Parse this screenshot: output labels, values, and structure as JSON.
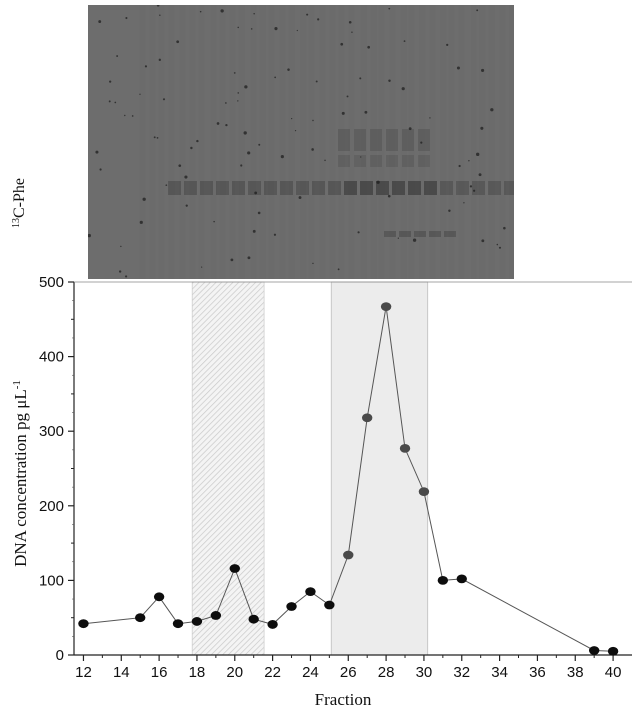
{
  "gel": {
    "label_superscript": "13",
    "label_main": "C-Phe"
  },
  "chart_data": {
    "type": "scatter",
    "xlabel": "Fraction",
    "ylabel_main": "DNA concentration pg μL",
    "ylabel_superscript": "-1",
    "xlim": [
      11.5,
      41
    ],
    "ylim": [
      0,
      500
    ],
    "xticks": [
      12,
      14,
      16,
      18,
      20,
      22,
      24,
      26,
      28,
      30,
      32,
      34,
      36,
      38,
      40
    ],
    "yticks": [
      0,
      100,
      200,
      300,
      400,
      500
    ],
    "grid": false,
    "shaded_regions": [
      {
        "x_start": 17.75,
        "x_end": 21.55,
        "style": "hatched"
      },
      {
        "x_start": 25.1,
        "x_end": 30.2,
        "style": "gray"
      }
    ],
    "series": [
      {
        "x": [
          12,
          15,
          16,
          17,
          18,
          19,
          20,
          21,
          22,
          23,
          24,
          25,
          26,
          27,
          28,
          29,
          30,
          31,
          32,
          39,
          40
        ],
        "y": [
          42,
          50,
          78,
          42,
          45,
          53,
          116,
          48,
          41,
          65,
          85,
          67,
          134,
          318,
          467,
          277,
          219,
          100,
          102,
          6,
          5
        ]
      }
    ]
  }
}
